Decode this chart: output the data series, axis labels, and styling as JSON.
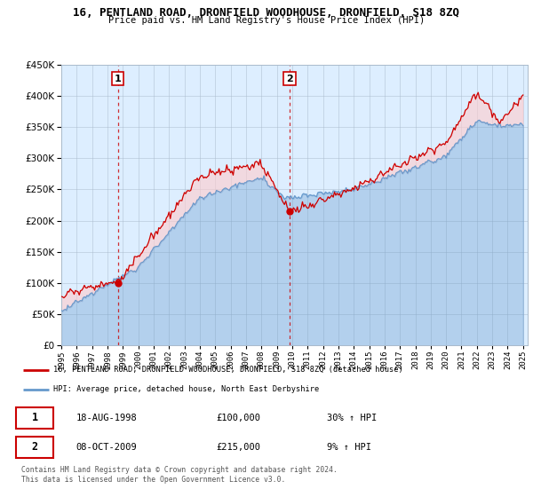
{
  "title": "16, PENTLAND ROAD, DRONFIELD WOODHOUSE, DRONFIELD, S18 8ZQ",
  "subtitle": "Price paid vs. HM Land Registry's House Price Index (HPI)",
  "legend_line1": "16, PENTLAND ROAD, DRONFIELD WOODHOUSE, DRONFIELD, S18 8ZQ (detached house)",
  "legend_line2": "HPI: Average price, detached house, North East Derbyshire",
  "transaction1_date": "18-AUG-1998",
  "transaction1_price": "£100,000",
  "transaction1_hpi": "30% ↑ HPI",
  "transaction2_date": "08-OCT-2009",
  "transaction2_price": "£215,000",
  "transaction2_hpi": "9% ↑ HPI",
  "footer": "Contains HM Land Registry data © Crown copyright and database right 2024.\nThis data is licensed under the Open Government Licence v3.0.",
  "hpi_color": "#6699CC",
  "price_color": "#CC0000",
  "bg_fill_color": "#ddeeff",
  "ylim": [
    0,
    450000
  ],
  "yticks": [
    0,
    50000,
    100000,
    150000,
    200000,
    250000,
    300000,
    350000,
    400000,
    450000
  ],
  "start_year": 1995,
  "end_year": 2025
}
